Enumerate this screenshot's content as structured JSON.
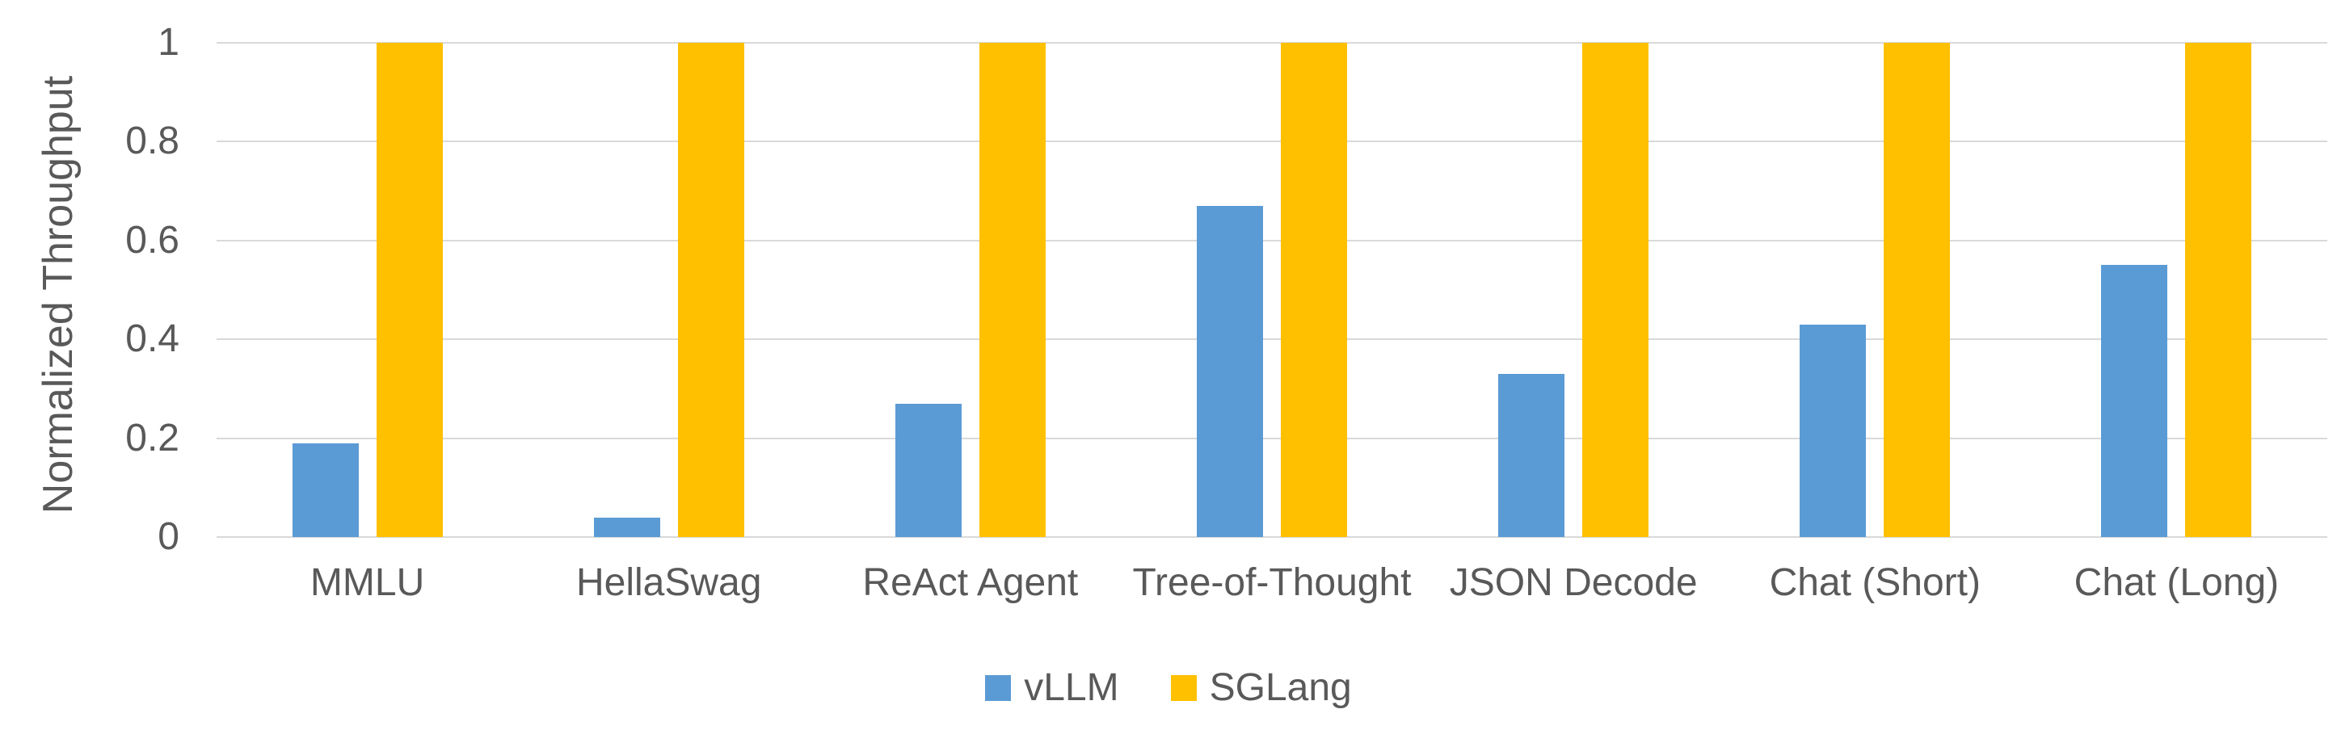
{
  "chart_data": {
    "type": "bar",
    "title": "",
    "xlabel": "",
    "ylabel": "Normalized Throughput",
    "categories": [
      "MMLU",
      "HellaSwag",
      "ReAct Agent",
      "Tree-of-Thought",
      "JSON Decode",
      "Chat (Short)",
      "Chat (Long)"
    ],
    "series": [
      {
        "name": "vLLM",
        "color": "#5B9BD5",
        "values": [
          0.19,
          0.04,
          0.27,
          0.67,
          0.33,
          0.43,
          0.55
        ]
      },
      {
        "name": "SGLang",
        "color": "#FFC000",
        "values": [
          1,
          1,
          1,
          1,
          1,
          1,
          1
        ]
      }
    ],
    "ylim": [
      0,
      1
    ],
    "yticks": [
      0,
      0.2,
      0.4,
      0.6,
      0.8,
      1
    ],
    "ytick_labels": [
      "0",
      "0.2",
      "0.4",
      "0.6",
      "0.8",
      "1"
    ],
    "grid": true,
    "legend_position": "bottom"
  },
  "colors": {
    "background": "#FFFFFF",
    "text": "#595959",
    "gridline": "#D9D9D9",
    "vllm_blue": "#5B9BD5",
    "sglang_gold": "#FFC000"
  }
}
